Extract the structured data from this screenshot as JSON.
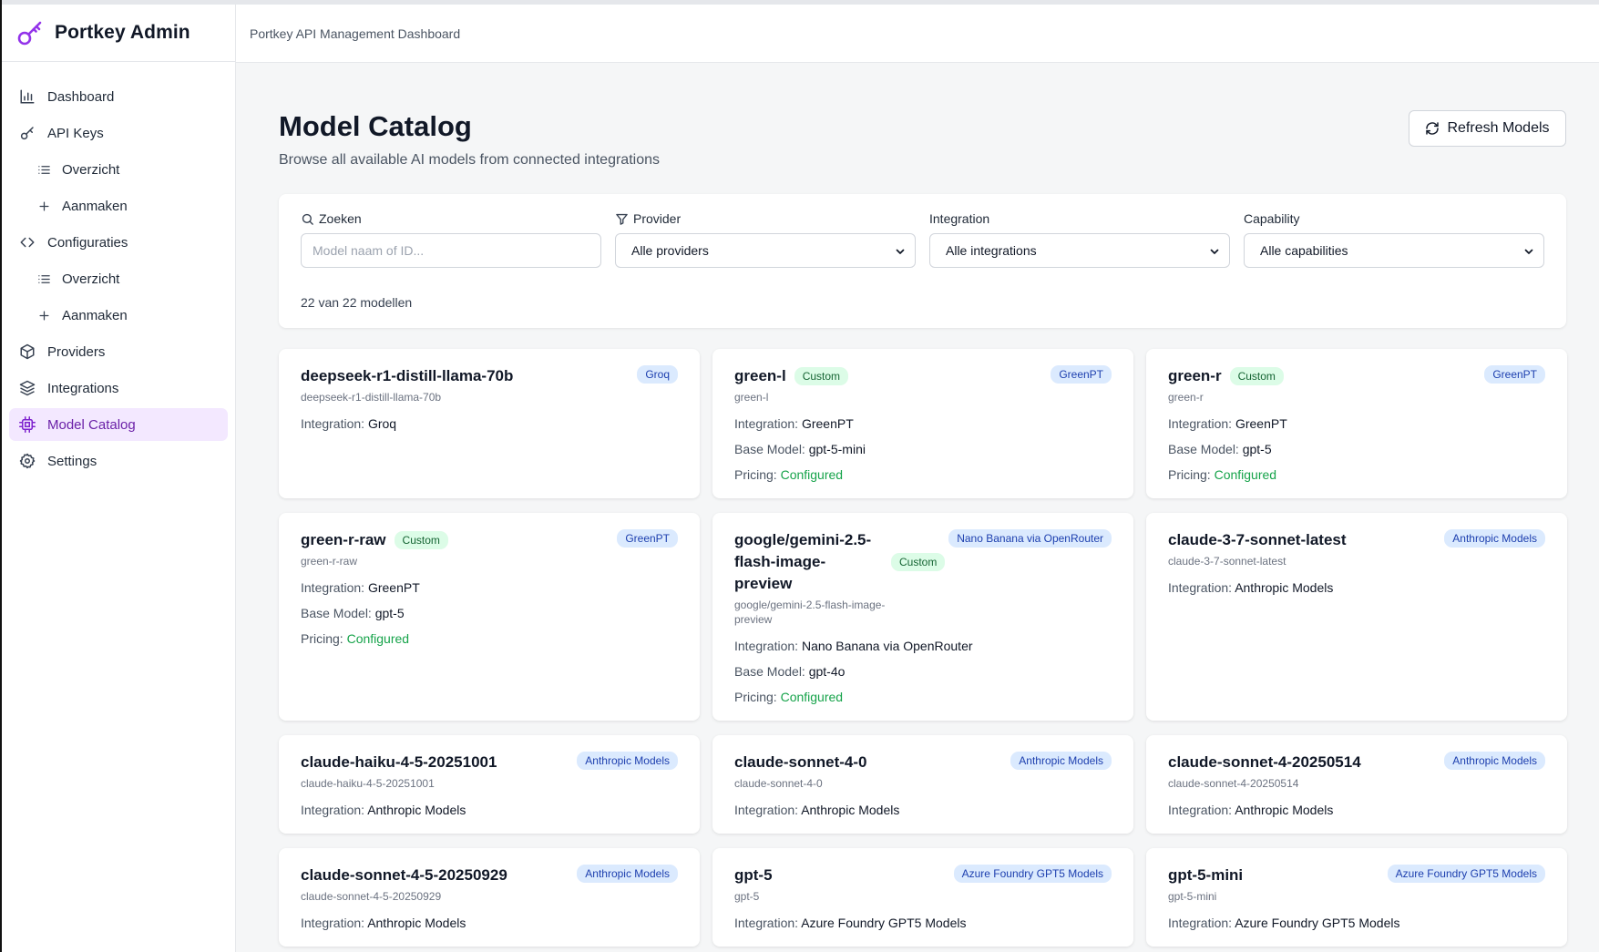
{
  "app": {
    "brand": "Portkey Admin",
    "header_subtitle": "Portkey API Management Dashboard"
  },
  "sidebar": {
    "items": [
      {
        "label": "Dashboard",
        "icon": "bar-chart-icon"
      },
      {
        "label": "API Keys",
        "icon": "key-icon"
      },
      {
        "label": "Overzicht",
        "icon": "list-icon"
      },
      {
        "label": "Aanmaken",
        "icon": "plus-icon"
      },
      {
        "label": "Configuraties",
        "icon": "code-icon"
      },
      {
        "label": "Overzicht",
        "icon": "list-icon"
      },
      {
        "label": "Aanmaken",
        "icon": "plus-icon"
      },
      {
        "label": "Providers",
        "icon": "box-icon"
      },
      {
        "label": "Integrations",
        "icon": "layers-icon"
      },
      {
        "label": "Model Catalog",
        "icon": "cpu-icon",
        "active": true
      },
      {
        "label": "Settings",
        "icon": "gear-icon"
      }
    ]
  },
  "page": {
    "title": "Model Catalog",
    "description": "Browse all available AI models from connected integrations",
    "refresh_label": "Refresh Models"
  },
  "filters": {
    "search_label": "Zoeken",
    "search_placeholder": "Model naam of ID...",
    "provider_label": "Provider",
    "provider_value": "Alle providers",
    "integration_label": "Integration",
    "integration_value": "Alle integrations",
    "capability_label": "Capability",
    "capability_value": "Alle capabilities",
    "count": "22 van 22 modellen"
  },
  "labels": {
    "integration": "Integration:",
    "base_model": "Base Model:",
    "pricing": "Pricing:",
    "custom": "Custom"
  },
  "models": [
    {
      "name": "deepseek-r1-distill-llama-70b",
      "id": "deepseek-r1-distill-llama-70b",
      "provider": "Groq",
      "integration": "Groq"
    },
    {
      "name": "green-l",
      "id": "green-l",
      "provider": "GreenPT",
      "integration": "GreenPT",
      "base_model": "gpt-5-mini",
      "pricing": "Configured",
      "custom": true
    },
    {
      "name": "green-r",
      "id": "green-r",
      "provider": "GreenPT",
      "integration": "GreenPT",
      "base_model": "gpt-5",
      "pricing": "Configured",
      "custom": true
    },
    {
      "name": "green-r-raw",
      "id": "green-r-raw",
      "provider": "GreenPT",
      "integration": "GreenPT",
      "base_model": "gpt-5",
      "pricing": "Configured",
      "custom": true
    },
    {
      "name": "google/gemini-2.5-flash-image-preview",
      "id": "google/gemini-2.5-flash-image-preview",
      "provider": "Nano Banana via OpenRouter",
      "integration": "Nano Banana via OpenRouter",
      "base_model": "gpt-4o",
      "pricing": "Configured",
      "custom": true
    },
    {
      "name": "claude-3-7-sonnet-latest",
      "id": "claude-3-7-sonnet-latest",
      "provider": "Anthropic Models",
      "integration": "Anthropic Models"
    },
    {
      "name": "claude-haiku-4-5-20251001",
      "id": "claude-haiku-4-5-20251001",
      "provider": "Anthropic Models",
      "integration": "Anthropic Models"
    },
    {
      "name": "claude-sonnet-4-0",
      "id": "claude-sonnet-4-0",
      "provider": "Anthropic Models",
      "integration": "Anthropic Models"
    },
    {
      "name": "claude-sonnet-4-20250514",
      "id": "claude-sonnet-4-20250514",
      "provider": "Anthropic Models",
      "integration": "Anthropic Models"
    },
    {
      "name": "claude-sonnet-4-5-20250929",
      "id": "claude-sonnet-4-5-20250929",
      "provider": "Anthropic Models",
      "integration": "Anthropic Models"
    },
    {
      "name": "gpt-5",
      "id": "gpt-5",
      "provider": "Azure Foundry GPT5 Models",
      "integration": "Azure Foundry GPT5 Models"
    },
    {
      "name": "gpt-5-mini",
      "id": "gpt-5-mini",
      "provider": "Azure Foundry GPT5 Models",
      "integration": "Azure Foundry GPT5 Models"
    }
  ]
}
